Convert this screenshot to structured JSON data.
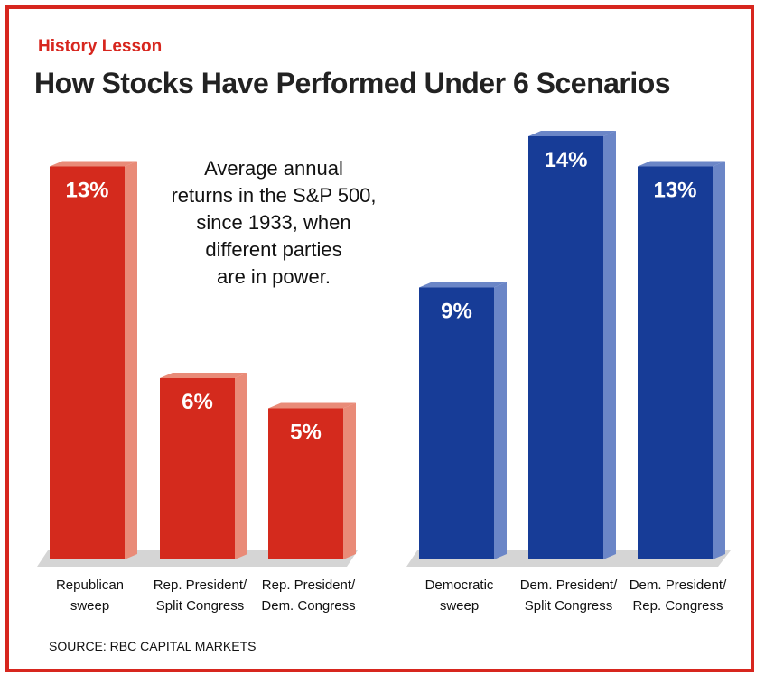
{
  "kicker": "History Lesson",
  "title": "How Stocks Have Performed Under 6 Scenarios",
  "subtitle": "Average annual\nreturns in the S&P 500,\nsince 1933, when\ndifferent parties\nare in power.",
  "source": "SOURCE: RBC CAPITAL MARKETS",
  "colors": {
    "frame": "#d7261e",
    "kicker": "#d7261e",
    "republican_front": "#d42a1d",
    "republican_side": "#e98b78",
    "democratic_front": "#173c97",
    "democratic_side": "#6b86c7",
    "floor": "#d5d5d5"
  },
  "chart_data": {
    "type": "bar",
    "title": "How Stocks Have Performed Under 6 Scenarios",
    "subtitle": "Average annual returns in the S&P 500, since 1933, when different parties are in power.",
    "ylabel": "",
    "xlabel": "",
    "ylim": [
      0,
      15
    ],
    "unit": "%",
    "grid": false,
    "categories": [
      [
        "Republican",
        "sweep"
      ],
      [
        "Rep. President/",
        "Split Congress"
      ],
      [
        "Rep. President/",
        "Dem. Congress"
      ],
      [
        "Democratic",
        "sweep"
      ],
      [
        "Dem. President/",
        "Split Congress"
      ],
      [
        "Dem. President/",
        "Rep. Congress"
      ]
    ],
    "values": [
      13,
      6,
      5,
      9,
      14,
      13
    ],
    "value_labels": [
      "13%",
      "6%",
      "5%",
      "9%",
      "14%",
      "13%"
    ],
    "party": [
      "republican",
      "republican",
      "republican",
      "democratic",
      "democratic",
      "democratic"
    ]
  }
}
